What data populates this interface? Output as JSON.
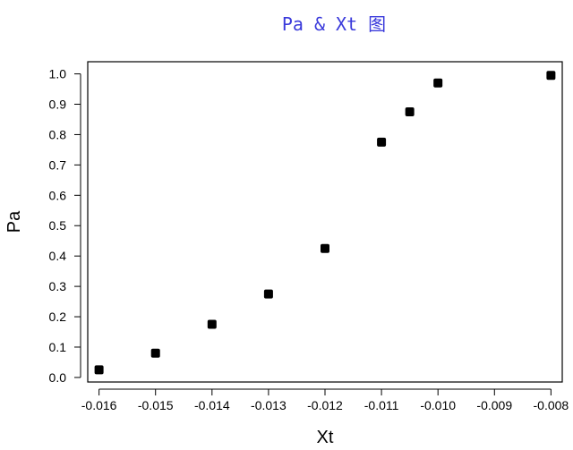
{
  "chart_data": {
    "type": "scatter",
    "title": "Pa & Xt 图",
    "xlabel": "Xt",
    "ylabel": "Pa",
    "xlim": [
      -0.0162,
      -0.0078
    ],
    "ylim": [
      -0.015,
      1.04
    ],
    "xticks": [
      -0.016,
      -0.015,
      -0.014,
      -0.013,
      -0.012,
      -0.011,
      -0.01,
      -0.009,
      -0.008
    ],
    "xtick_labels": [
      "-0.016",
      "-0.015",
      "-0.014",
      "-0.013",
      "-0.012",
      "-0.011",
      "-0.010",
      "-0.009",
      "-0.008"
    ],
    "yticks": [
      0.0,
      0.1,
      0.2,
      0.3,
      0.4,
      0.5,
      0.6,
      0.7,
      0.8,
      0.9,
      1.0
    ],
    "ytick_labels": [
      "0.0",
      "0.1",
      "0.2",
      "0.3",
      "0.4",
      "0.5",
      "0.6",
      "0.7",
      "0.8",
      "0.9",
      "1.0"
    ],
    "grid": false,
    "title_color": "#3a3adb",
    "marker_color": "#000000",
    "series": [
      {
        "x": [
          -0.016,
          -0.015,
          -0.014,
          -0.013,
          -0.012,
          -0.011,
          -0.0105,
          -0.01,
          -0.008
        ],
        "y": [
          0.025,
          0.08,
          0.175,
          0.275,
          0.425,
          0.775,
          0.875,
          0.97,
          0.995
        ]
      }
    ]
  }
}
